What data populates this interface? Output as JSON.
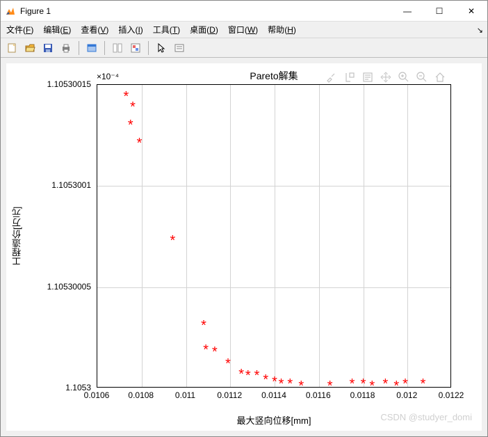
{
  "window": {
    "title": "Figure 1",
    "controls": {
      "minimize": "—",
      "maximize": "☐",
      "close": "✕"
    }
  },
  "menubar": {
    "items": [
      {
        "label": "文件",
        "accel": "F"
      },
      {
        "label": "编辑",
        "accel": "E"
      },
      {
        "label": "查看",
        "accel": "V"
      },
      {
        "label": "插入",
        "accel": "I"
      },
      {
        "label": "工具",
        "accel": "T"
      },
      {
        "label": "桌面",
        "accel": "D"
      },
      {
        "label": "窗口",
        "accel": "W"
      },
      {
        "label": "帮助",
        "accel": "H"
      }
    ],
    "corner_arrow": "↘"
  },
  "toolbar": {
    "buttons": [
      {
        "name": "new-figure-icon",
        "color": "#f5d38b",
        "color2": "#ffffff"
      },
      {
        "name": "open-icon",
        "color": "#f5b73a",
        "color2": "#f5e08b"
      },
      {
        "name": "save-icon",
        "color": "#3a5bb5",
        "color2": "#9fb5e0"
      },
      {
        "name": "print-icon",
        "color": "#808080",
        "color2": "#cccccc"
      },
      {
        "name": "sep"
      },
      {
        "name": "link-icon",
        "color": "#3378d6",
        "color2": "#a8c6ef"
      },
      {
        "name": "sep"
      },
      {
        "name": "cursor-edit-icon",
        "color": "#a6a6a6",
        "color2": "#ffffff"
      },
      {
        "name": "colorbar-icon",
        "color": "#e86868",
        "color2": "#6890e8"
      },
      {
        "name": "sep"
      },
      {
        "name": "pointer-icon",
        "color": "#000000",
        "color2": "#ffffff"
      },
      {
        "name": "legend-icon",
        "color": "#808080",
        "color2": "#ffffff"
      }
    ]
  },
  "chart": {
    "type": "scatter",
    "title": "Pareto解集",
    "title_fontsize": 14,
    "xlabel": "最大竖向位移[mm]",
    "ylabel": "工程造价[万元]",
    "label_fontsize": 13,
    "exp_label": "×10⁻⁴",
    "xlim": [
      0.0106,
      0.0122
    ],
    "ylim": [
      1.1053,
      1.10530015
    ],
    "xticks": [
      0.0106,
      0.0108,
      0.011,
      0.0112,
      0.0114,
      0.0116,
      0.0118,
      0.012,
      0.0122
    ],
    "xtick_labels": [
      "0.0106",
      "0.0108",
      "0.011",
      "0.0112",
      "0.0114",
      "0.0116",
      "0.0118",
      "0.012",
      "0.0122"
    ],
    "yticks": [
      1.1053,
      1.10530005,
      1.1053001,
      1.10530015
    ],
    "ytick_labels": [
      "1.1053",
      "1.10530005",
      "1.1053001",
      "1.10530015"
    ],
    "marker_style": "*",
    "marker_color": "#ff0000",
    "marker_fontsize": 20,
    "background_color": "#ffffff",
    "grid_color": "#d3d3d3",
    "axes_border_color": "#000000",
    "points": [
      {
        "x": 0.01073,
        "y": 1.105300143
      },
      {
        "x": 0.01076,
        "y": 1.105300138
      },
      {
        "x": 0.01075,
        "y": 1.105300129
      },
      {
        "x": 0.01079,
        "y": 1.10530012
      },
      {
        "x": 0.01094,
        "y": 1.105300072
      },
      {
        "x": 0.01108,
        "y": 1.10530003
      },
      {
        "x": 0.01109,
        "y": 1.105300018
      },
      {
        "x": 0.01113,
        "y": 1.105300017
      },
      {
        "x": 0.01119,
        "y": 1.105300011
      },
      {
        "x": 0.01125,
        "y": 1.105300006
      },
      {
        "x": 0.01128,
        "y": 1.105300005
      },
      {
        "x": 0.01132,
        "y": 1.105300005
      },
      {
        "x": 0.01136,
        "y": 1.105300003
      },
      {
        "x": 0.0114,
        "y": 1.105300002
      },
      {
        "x": 0.01143,
        "y": 1.105300001
      },
      {
        "x": 0.01147,
        "y": 1.105300001
      },
      {
        "x": 0.01152,
        "y": 1.1053
      },
      {
        "x": 0.01165,
        "y": 1.1053
      },
      {
        "x": 0.01175,
        "y": 1.105300001
      },
      {
        "x": 0.0118,
        "y": 1.105300001
      },
      {
        "x": 0.01184,
        "y": 1.1053
      },
      {
        "x": 0.0119,
        "y": 1.105300001
      },
      {
        "x": 0.01195,
        "y": 1.1053
      },
      {
        "x": 0.01199,
        "y": 1.105300001
      },
      {
        "x": 0.01207,
        "y": 1.105300001
      }
    ]
  },
  "axes_toolbar": {
    "buttons": [
      "brush-icon",
      "datatip-icon",
      "note-icon",
      "pan-icon",
      "zoomin-icon",
      "zoomout-icon",
      "home-icon"
    ]
  },
  "watermark": "CSDN @studyer_domi"
}
